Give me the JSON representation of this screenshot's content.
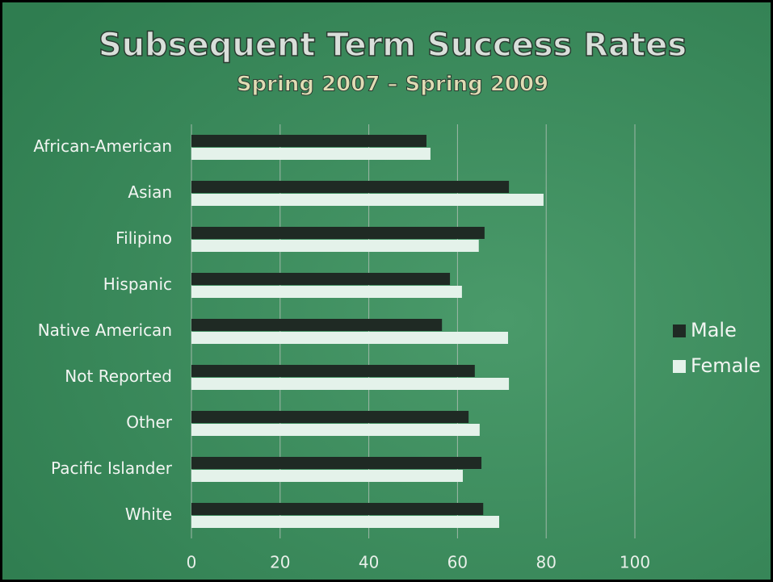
{
  "chart_data": {
    "type": "bar",
    "title": "Subsequent Term Success Rates",
    "subtitle": "Spring 2007 – Spring 2009",
    "categories": [
      "African-American",
      "Asian",
      "Filipino",
      "Hispanic",
      "Native American",
      "Not Reported",
      "Other",
      "Pacific Islander",
      "White"
    ],
    "series": [
      {
        "name": "Male",
        "color": "#1f2a24",
        "values": [
          53,
          71.6,
          66.1,
          58.3,
          56.5,
          63.9,
          62.5,
          65.4,
          65.8
        ]
      },
      {
        "name": "Female",
        "color": "#e4f2ea",
        "values": [
          53.9,
          79.4,
          64.8,
          61,
          71.4,
          71.6,
          65,
          61.2,
          69.4
        ]
      }
    ],
    "xlim": [
      0,
      100
    ],
    "xticks": [
      0,
      20,
      40,
      60,
      80,
      100
    ],
    "grid": true,
    "legend": "right"
  }
}
